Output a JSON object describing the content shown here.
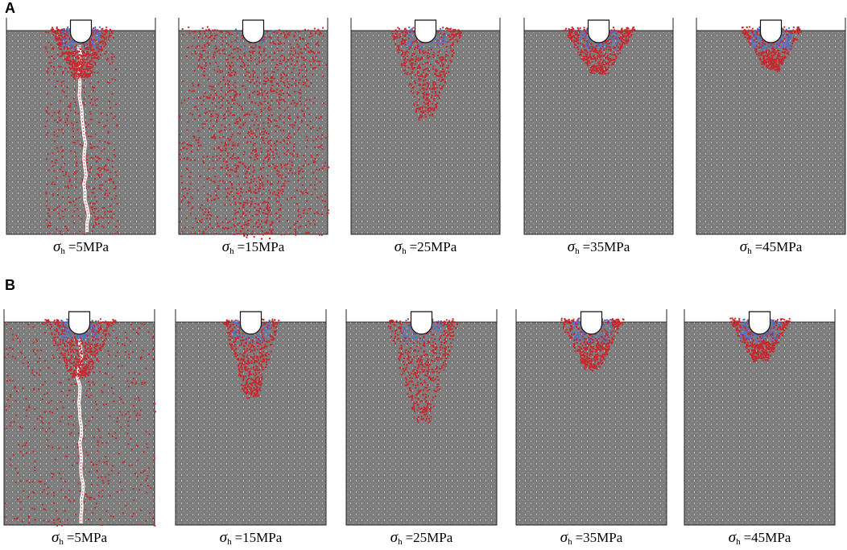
{
  "figure": {
    "rows": [
      {
        "letter": "A",
        "panels": [
          {
            "symbol": "σ",
            "sub": "h",
            "text": "=5MPa"
          },
          {
            "symbol": "σ",
            "sub": "h",
            "text": "=15MPa"
          },
          {
            "symbol": "σ",
            "sub": "h",
            "text": "=25MPa"
          },
          {
            "symbol": "σ",
            "sub": "h",
            "text": "=35MPa"
          },
          {
            "symbol": "σ",
            "sub": "h",
            "text": "=45MPa"
          }
        ]
      },
      {
        "letter": "B",
        "panels": [
          {
            "symbol": "σ",
            "sub": "h",
            "text": "=5MPa"
          },
          {
            "symbol": "σ",
            "sub": "h",
            "text": "=15MPa"
          },
          {
            "symbol": "σ",
            "sub": "h",
            "text": "=25MPa"
          },
          {
            "symbol": "σ",
            "sub": "h",
            "text": "=35MPa"
          },
          {
            "symbol": "σ",
            "sub": "h",
            "text": "=45MPa"
          }
        ]
      }
    ]
  }
}
